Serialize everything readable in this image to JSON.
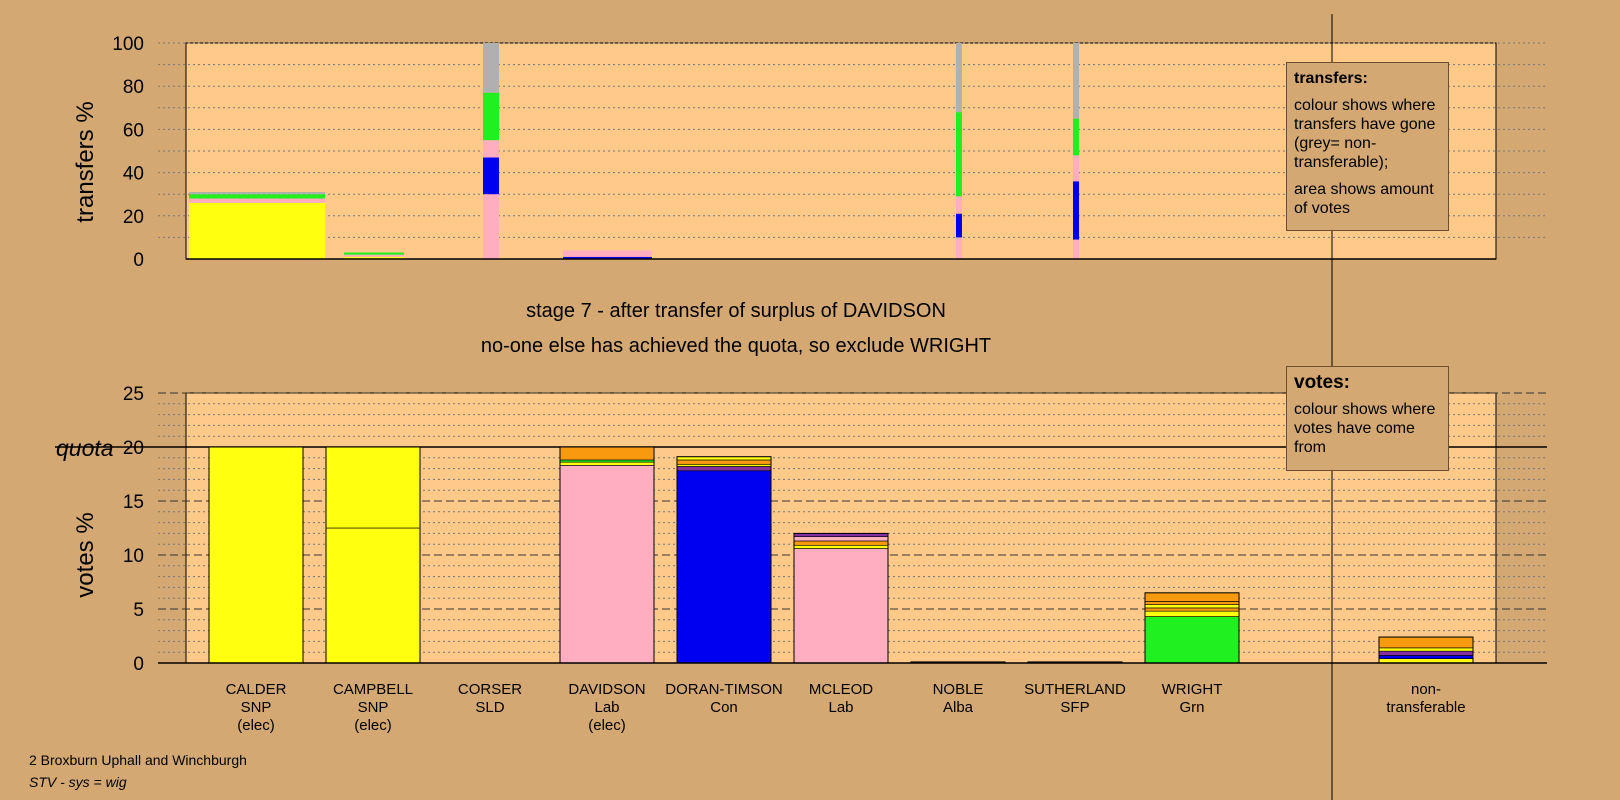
{
  "stage": {
    "line1": "stage 7 - after transfer of surplus of DAVIDSON",
    "line2": "no-one else has achieved the quota, so exclude WRIGHT"
  },
  "footer": {
    "ward": "2 Broxburn Uphall and Winchburgh",
    "system": "STV - sys = wig"
  },
  "legends": {
    "transfers": {
      "title": "transfers:",
      "line1": "colour shows where transfers have gone (grey= non-transferable);",
      "line2": "area shows amount of votes"
    },
    "votes": {
      "title": "votes:",
      "line1": "colour shows where votes have come from"
    }
  },
  "colors": {
    "background": "#d4a872",
    "plot": "#ffc98a",
    "snp": "#ffff10",
    "lab": "#ffaec0",
    "con": "#0000f0",
    "grn": "#20f020",
    "nontransferable": "#b0b0b0",
    "orange": "#f79a10",
    "purple": "#8030a0"
  },
  "candidates": [
    {
      "name": "CALDER",
      "party": "SNP",
      "status": "(elec)"
    },
    {
      "name": "CAMPBELL",
      "party": "SNP",
      "status": "(elec)"
    },
    {
      "name": "CORSER",
      "party": "SLD",
      "status": ""
    },
    {
      "name": "DAVIDSON",
      "party": "Lab",
      "status": "(elec)"
    },
    {
      "name": "DORAN-TIMSON",
      "party": "Con",
      "status": ""
    },
    {
      "name": "MCLEOD",
      "party": "Lab",
      "status": ""
    },
    {
      "name": "NOBLE",
      "party": "Alba",
      "status": ""
    },
    {
      "name": "SUTHERLAND",
      "party": "SFP",
      "status": ""
    },
    {
      "name": "WRIGHT",
      "party": "Grn",
      "status": ""
    },
    {
      "name": "non-",
      "party": "transferable",
      "status": ""
    }
  ],
  "chart_data": [
    {
      "type": "bar",
      "ylabel": "transfers %",
      "ylim": [
        0,
        100
      ],
      "yticks": [
        "0",
        "20",
        "40",
        "60",
        "80",
        "100"
      ],
      "grid": true,
      "legend": "top-right",
      "columns": [
        {
          "candidate": "CALDER",
          "width_votes": 20,
          "segments": [
            {
              "color": "snp",
              "from": 0,
              "to": 26
            },
            {
              "color": "lab",
              "from": 26,
              "to": 28
            },
            {
              "color": "grn",
              "from": 28,
              "to": 30
            },
            {
              "color": "nontransferable",
              "from": 30,
              "to": 31
            }
          ]
        },
        {
          "candidate": "CAMPBELL",
          "width_votes": 7.5,
          "segments": [
            {
              "color": "snp",
              "from": 0,
              "to": 1
            },
            {
              "color": "lab",
              "from": 1,
              "to": 2
            },
            {
              "color": "grn",
              "from": 2,
              "to": 3
            }
          ]
        },
        {
          "candidate": "CORSER",
          "width_votes": 0.2,
          "segments": [
            {
              "color": "lab",
              "from": 0,
              "to": 30
            },
            {
              "color": "con",
              "from": 30,
              "to": 47
            },
            {
              "color": "lab",
              "from": 47,
              "to": 55
            },
            {
              "color": "grn",
              "from": 55,
              "to": 77
            },
            {
              "color": "nontransferable",
              "from": 77,
              "to": 100
            }
          ]
        },
        {
          "candidate": "DAVIDSON",
          "width_votes": 1.5,
          "segments": [
            {
              "color": "con",
              "from": 0,
              "to": 1
            },
            {
              "color": "lab",
              "from": 1,
              "to": 4
            }
          ]
        },
        {
          "candidate": "NOBLE",
          "width_votes": 0.1,
          "segments": [
            {
              "color": "lab",
              "from": 0,
              "to": 10
            },
            {
              "color": "con",
              "from": 10,
              "to": 21
            },
            {
              "color": "lab",
              "from": 21,
              "to": 29
            },
            {
              "color": "grn",
              "from": 29,
              "to": 68
            },
            {
              "color": "nontransferable",
              "from": 68,
              "to": 100
            }
          ]
        },
        {
          "candidate": "SUTHERLAND",
          "width_votes": 0.1,
          "segments": [
            {
              "color": "lab",
              "from": 0,
              "to": 9
            },
            {
              "color": "con",
              "from": 9,
              "to": 36
            },
            {
              "color": "lab",
              "from": 36,
              "to": 48
            },
            {
              "color": "grn",
              "from": 48,
              "to": 65
            },
            {
              "color": "nontransferable",
              "from": 65,
              "to": 100
            }
          ]
        }
      ]
    },
    {
      "type": "bar",
      "ylabel": "votes %",
      "ylim": [
        0,
        25
      ],
      "yticks": [
        "0",
        "5",
        "10",
        "15",
        "20",
        "25"
      ],
      "quota": 20,
      "quota_label": "quota",
      "grid": true,
      "legend": "top-right",
      "categories": [
        "CALDER",
        "CAMPBELL",
        "CORSER",
        "DAVIDSON",
        "DORAN-TIMSON",
        "MCLEOD",
        "NOBLE",
        "SUTHERLAND",
        "WRIGHT",
        "non-transferable"
      ],
      "bars": [
        {
          "candidate": "CALDER",
          "total": 20,
          "segments": [
            {
              "color": "snp",
              "from": 0,
              "to": 20
            }
          ]
        },
        {
          "candidate": "CAMPBELL",
          "total": 20,
          "segments": [
            {
              "color": "snp",
              "from": 0,
              "to": 12.5
            },
            {
              "color": "snp",
              "from": 12.5,
              "to": 20
            }
          ]
        },
        {
          "candidate": "CORSER",
          "total": 0,
          "segments": []
        },
        {
          "candidate": "DAVIDSON",
          "total": 20,
          "segments": [
            {
              "color": "lab",
              "from": 0,
              "to": 18.3
            },
            {
              "color": "snp",
              "from": 18.3,
              "to": 18.6
            },
            {
              "color": "grn",
              "from": 18.6,
              "to": 18.8
            },
            {
              "color": "orange",
              "from": 18.8,
              "to": 20
            }
          ]
        },
        {
          "candidate": "DORAN-TIMSON",
          "total": 19.1,
          "segments": [
            {
              "color": "con",
              "from": 0,
              "to": 17.8
            },
            {
              "color": "purple",
              "from": 17.8,
              "to": 18.2
            },
            {
              "color": "snp",
              "from": 18.2,
              "to": 18.4
            },
            {
              "color": "orange",
              "from": 18.4,
              "to": 18.8
            },
            {
              "color": "snp",
              "from": 18.8,
              "to": 19.1
            }
          ]
        },
        {
          "candidate": "MCLEOD",
          "total": 12,
          "segments": [
            {
              "color": "lab",
              "from": 0,
              "to": 10.6
            },
            {
              "color": "snp",
              "from": 10.6,
              "to": 10.9
            },
            {
              "color": "orange",
              "from": 10.9,
              "to": 11.3
            },
            {
              "color": "lab",
              "from": 11.3,
              "to": 11.7
            },
            {
              "color": "purple",
              "from": 11.7,
              "to": 12
            }
          ]
        },
        {
          "candidate": "NOBLE",
          "total": 0.1,
          "segments": [
            {
              "color": "grn",
              "from": 0,
              "to": 0.1
            }
          ]
        },
        {
          "candidate": "SUTHERLAND",
          "total": 0.1,
          "segments": [
            {
              "color": "grn",
              "from": 0,
              "to": 0.1
            }
          ]
        },
        {
          "candidate": "WRIGHT",
          "total": 6.5,
          "segments": [
            {
              "color": "grn",
              "from": 0,
              "to": 4.3
            },
            {
              "color": "snp",
              "from": 4.3,
              "to": 4.8
            },
            {
              "color": "orange",
              "from": 4.8,
              "to": 5.1
            },
            {
              "color": "snp",
              "from": 5.1,
              "to": 5.4
            },
            {
              "color": "orange",
              "from": 5.4,
              "to": 5.7
            },
            {
              "color": "orange",
              "from": 5.7,
              "to": 6.5
            }
          ]
        },
        {
          "candidate": "non-transferable",
          "total": 2.4,
          "segments": [
            {
              "color": "snp",
              "from": 0,
              "to": 0.4
            },
            {
              "color": "con",
              "from": 0.4,
              "to": 0.7
            },
            {
              "color": "purple",
              "from": 0.7,
              "to": 1.1
            },
            {
              "color": "snp",
              "from": 1.1,
              "to": 1.4
            },
            {
              "color": "orange",
              "from": 1.4,
              "to": 2.4
            }
          ]
        }
      ]
    }
  ]
}
